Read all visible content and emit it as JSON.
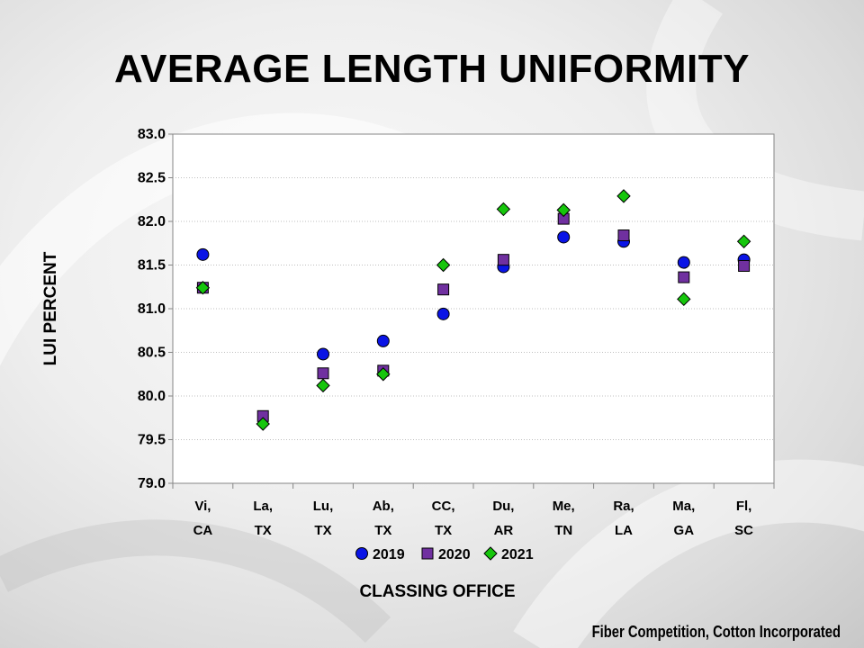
{
  "title": "AVERAGE LENGTH UNIFORMITY",
  "credit": "Fiber Competition, Cotton Incorporated",
  "chart_data": {
    "type": "scatter",
    "title": "AVERAGE LENGTH UNIFORMITY",
    "xlabel": "CLASSING OFFICE",
    "ylabel": "LUI PERCENT",
    "categories": [
      [
        "Vi,",
        "CA"
      ],
      [
        "La,",
        "TX"
      ],
      [
        "Lu,",
        "TX"
      ],
      [
        "Ab,",
        "TX"
      ],
      [
        "CC,",
        "TX"
      ],
      [
        "Du,",
        "AR"
      ],
      [
        "Me,",
        "TN"
      ],
      [
        "Ra,",
        "LA"
      ],
      [
        "Ma,",
        "GA"
      ],
      [
        "Fl,",
        "SC"
      ]
    ],
    "ylim": [
      79.0,
      83.0
    ],
    "yticks": [
      "79.0",
      "79.5",
      "80.0",
      "80.5",
      "81.0",
      "81.5",
      "82.0",
      "82.5",
      "83.0"
    ],
    "grid": true,
    "legend_position": "bottom",
    "series": [
      {
        "name": "2019",
        "marker": "circle",
        "color": "#0a14e6",
        "values": [
          81.62,
          null,
          80.48,
          80.63,
          80.94,
          81.48,
          81.82,
          81.77,
          81.53,
          81.56
        ]
      },
      {
        "name": "2020",
        "marker": "square",
        "color": "#7030a0",
        "values": [
          81.24,
          79.77,
          80.26,
          80.29,
          81.22,
          81.56,
          82.03,
          81.84,
          81.36,
          81.49
        ]
      },
      {
        "name": "2021",
        "marker": "diamond",
        "color": "#16c60c",
        "values": [
          81.24,
          79.68,
          80.12,
          80.25,
          81.5,
          82.14,
          82.13,
          82.29,
          81.11,
          81.77
        ]
      }
    ]
  }
}
